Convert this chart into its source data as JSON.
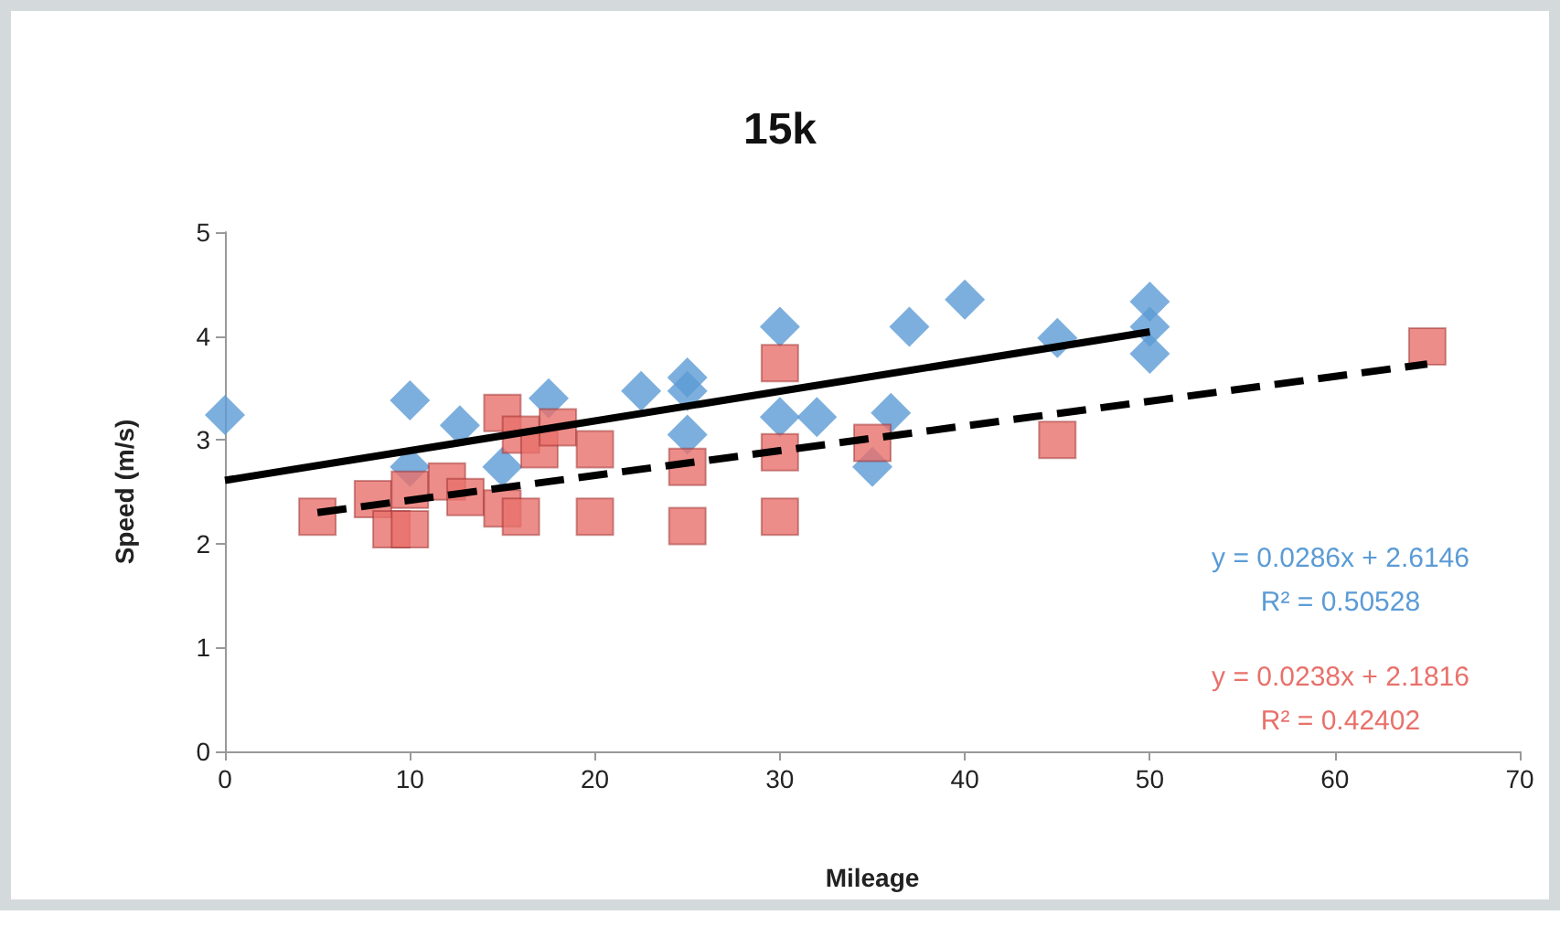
{
  "chart_data": {
    "type": "scatter",
    "title": "15k",
    "xlabel": "Mileage",
    "ylabel": "Speed (m/s)",
    "xlim": [
      0,
      70
    ],
    "xticks": [
      0,
      10,
      20,
      30,
      40,
      50,
      60,
      70
    ],
    "ylim": [
      0,
      5
    ],
    "yticks": [
      0,
      1,
      2,
      3,
      4,
      5
    ],
    "grid": false,
    "series": [
      {
        "color": "#5b9bd5",
        "marker": "diamond",
        "x": [
          0,
          10,
          12.7,
          17.5,
          22.5,
          10,
          15,
          25,
          25,
          25,
          30,
          30,
          32,
          36,
          35,
          37,
          40,
          45,
          50,
          50,
          50
        ],
        "values": [
          3.24,
          3.38,
          3.14,
          3.4,
          3.47,
          2.74,
          2.74,
          3.6,
          3.47,
          3.05,
          4.09,
          3.22,
          3.22,
          3.26,
          2.74,
          4.09,
          4.35,
          3.98,
          4.33,
          4.09,
          3.83
        ]
      },
      {
        "color": "#e8716b",
        "marker": "square",
        "x": [
          5,
          8,
          9,
          10,
          10,
          12,
          13,
          15,
          15,
          16,
          16,
          17,
          18,
          20,
          20,
          25,
          25,
          30,
          30,
          30,
          35,
          45,
          65
        ],
        "values": [
          2.26,
          2.43,
          2.14,
          2.14,
          2.52,
          2.6,
          2.45,
          3.26,
          2.34,
          3.05,
          2.26,
          2.91,
          3.12,
          2.91,
          2.26,
          2.74,
          2.17,
          3.74,
          2.88,
          2.26,
          2.97,
          3.0,
          3.9
        ]
      },
      {
        "type": "line",
        "color": "#000000",
        "marker": "none",
        "line_style": "solid",
        "x": [
          0,
          50
        ],
        "values": [
          2.61,
          4.04
        ]
      },
      {
        "type": "line",
        "color": "#000000",
        "marker": "none",
        "line_style": "dashed",
        "x": [
          5,
          65
        ],
        "values": [
          2.3,
          3.73
        ]
      }
    ],
    "annotations": [
      "y = 0.0286x + 2.6146",
      "R² = 0.50528",
      "y = 0.0238x + 2.1816",
      "R² = 0.42402"
    ]
  }
}
